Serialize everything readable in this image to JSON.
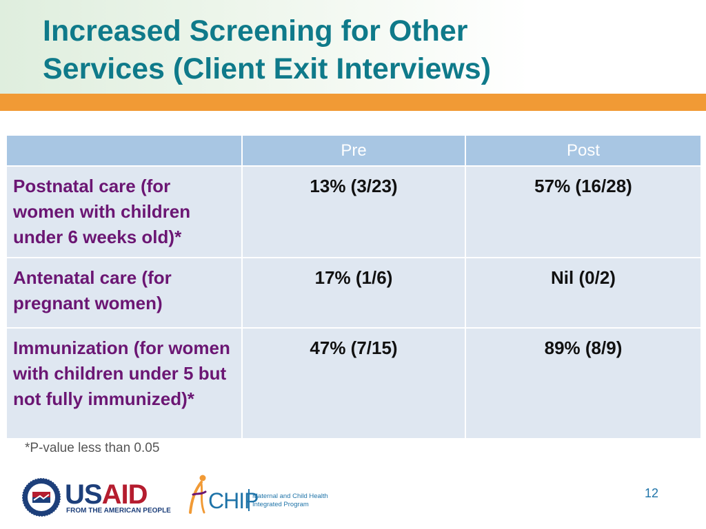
{
  "slide": {
    "title_line1": "Increased Screening for Other",
    "title_line2": "Services (Client Exit Interviews)",
    "page_number": "12"
  },
  "table": {
    "headers": [
      "",
      "Pre",
      "Post"
    ],
    "rows": [
      {
        "label": "Postnatal care (for women with children under 6 weeks old)*",
        "pre": "13% (3/23)",
        "post": "57% (16/28)"
      },
      {
        "label": "Antenatal care (for pregnant women)",
        "pre": "17% (1/6)",
        "post": "Nil (0/2)"
      },
      {
        "label": "Immunization (for women with children under 5 but not fully immunized)*",
        "pre": "47% (7/15)",
        "post": "89% (8/9)"
      }
    ]
  },
  "footnote": "*P-value less than 0.05",
  "logos": {
    "usaid": {
      "word_us": "US",
      "word_aid": "AID",
      "tagline": "FROM THE AMERICAN PEOPLE"
    },
    "mchip": {
      "word": "CHIP",
      "subtitle_line1": "Maternal and Child Health",
      "subtitle_line2": "Integrated Program"
    }
  },
  "colors": {
    "title": "#0f7a8a",
    "accent_bar": "#f19a35",
    "header_fill": "#a8c6e3",
    "cell_fill": "#dfe7f1",
    "row_label": "#6b1673",
    "usaid_blue": "#1d3f7a",
    "usaid_red": "#b51d2f",
    "mchip_blue": "#1e73a8"
  }
}
